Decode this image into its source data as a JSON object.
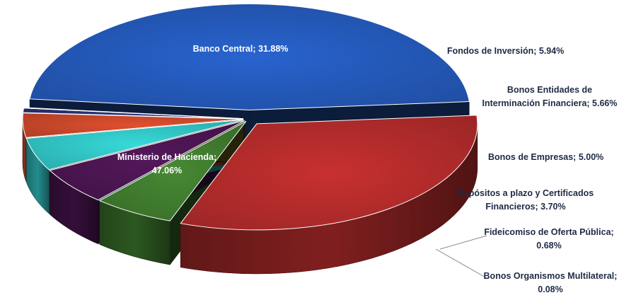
{
  "chart_data": {
    "type": "pie",
    "style": "3d-exploded",
    "title": "",
    "legend": "none",
    "slices": [
      {
        "name": "Ministerio de Hacienda",
        "value": 47.06,
        "label_lines": [
          "Ministerio de Hacienda;",
          "47.06%"
        ],
        "color": "#2458b8"
      },
      {
        "name": "Banco Central",
        "value": 31.88,
        "label_lines": [
          "Banco Central; 31.88%"
        ],
        "color": "#b32b2b"
      },
      {
        "name": "Fondos de Inversión",
        "value": 5.94,
        "label_lines": [
          "Fondos de Inversión; 5.94%"
        ],
        "color": "#3f7a2e"
      },
      {
        "name": "Bonos Entidades de Interminación Financiera",
        "value": 5.66,
        "label_lines": [
          "Bonos Entidades de",
          "Interminación Financiera; 5.66%"
        ],
        "color": "#4a1550"
      },
      {
        "name": "Bonos de Empresas",
        "value": 5.0,
        "label_lines": [
          "Bonos de Empresas; 5.00%"
        ],
        "color": "#31c2c2"
      },
      {
        "name": "Depósitos a plazo y Certificados Financieros",
        "value": 3.7,
        "label_lines": [
          "Depósitos a plazo y Certificados",
          "Financieros; 3.70%"
        ],
        "color": "#c8472a"
      },
      {
        "name": "Fideicomiso de Oferta Pública",
        "value": 0.68,
        "label_lines": [
          "Fideicomiso de Oferta Pública;",
          "0.68%"
        ],
        "color": "#26306e"
      },
      {
        "name": "Bonos Organismos Multilateral",
        "value": 0.08,
        "label_lines": [
          "Bonos Organismos Multilateral;",
          "0.08%"
        ],
        "color": "#7a6a1e"
      }
    ]
  }
}
